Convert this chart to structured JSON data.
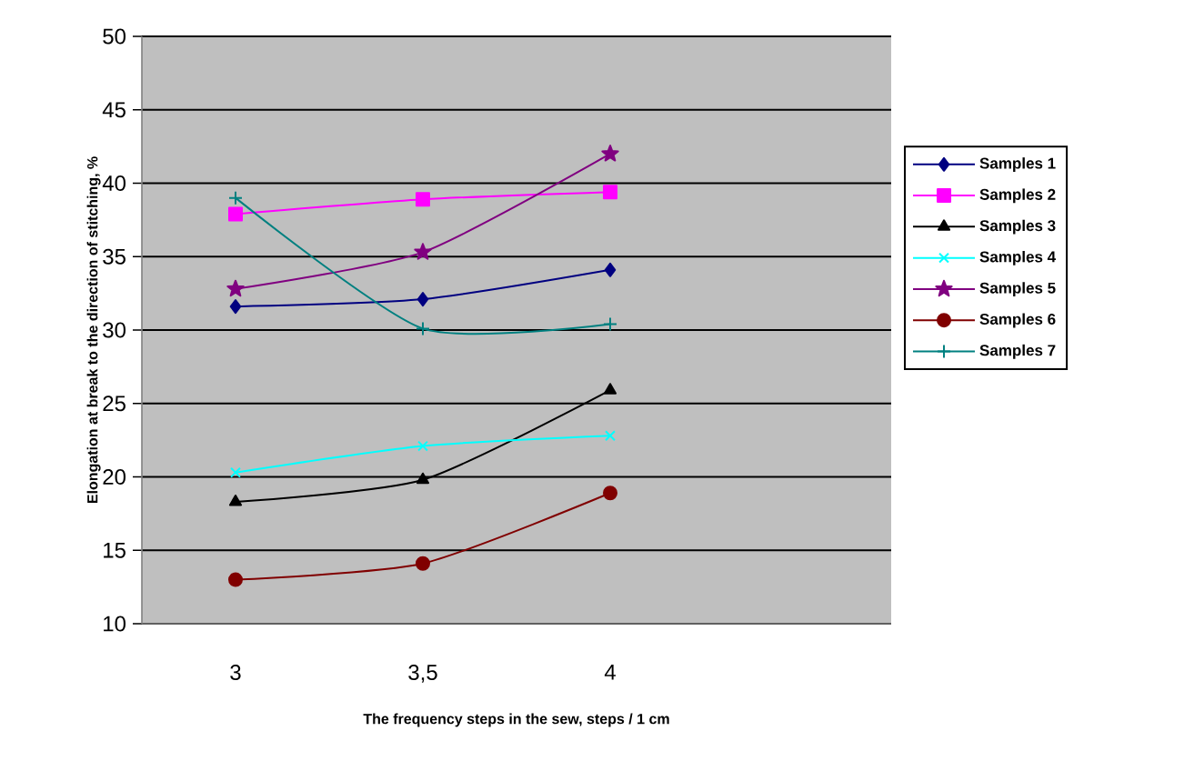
{
  "chart_data": {
    "type": "line",
    "xlabel": "The frequency steps in the sew, steps / 1 cm",
    "ylabel": "Elongation at break to the direction of stitching, %",
    "categories": [
      "3",
      "3,5",
      "4",
      null
    ],
    "ylim": [
      10,
      50
    ],
    "yticks": [
      10,
      15,
      20,
      25,
      30,
      35,
      40,
      45,
      50
    ],
    "grid": "y",
    "legend": "right",
    "line_style": "solid",
    "series": [
      {
        "name": "Samples 1",
        "color": "#000080",
        "marker": "diamond",
        "values": [
          31.6,
          32.1,
          34.1,
          null
        ]
      },
      {
        "name": "Samples 2",
        "color": "#ff00ff",
        "marker": "square",
        "values": [
          37.9,
          38.9,
          39.4,
          null
        ]
      },
      {
        "name": "Samples 3",
        "color": "#000000",
        "marker": "triangle",
        "values": [
          18.3,
          19.8,
          25.9,
          null
        ]
      },
      {
        "name": "Samples 4",
        "color": "#00ffff",
        "marker": "cross",
        "values": [
          20.3,
          22.1,
          22.8,
          null
        ]
      },
      {
        "name": "Samples 5",
        "color": "#800080",
        "marker": "star",
        "values": [
          32.8,
          35.3,
          42.0,
          null
        ]
      },
      {
        "name": "Samples 6",
        "color": "#800000",
        "marker": "circle",
        "values": [
          13.0,
          14.1,
          18.9,
          null
        ]
      },
      {
        "name": "Samples 7",
        "color": "#008080",
        "marker": "plus",
        "values": [
          39.0,
          30.1,
          30.4,
          null
        ]
      }
    ]
  }
}
